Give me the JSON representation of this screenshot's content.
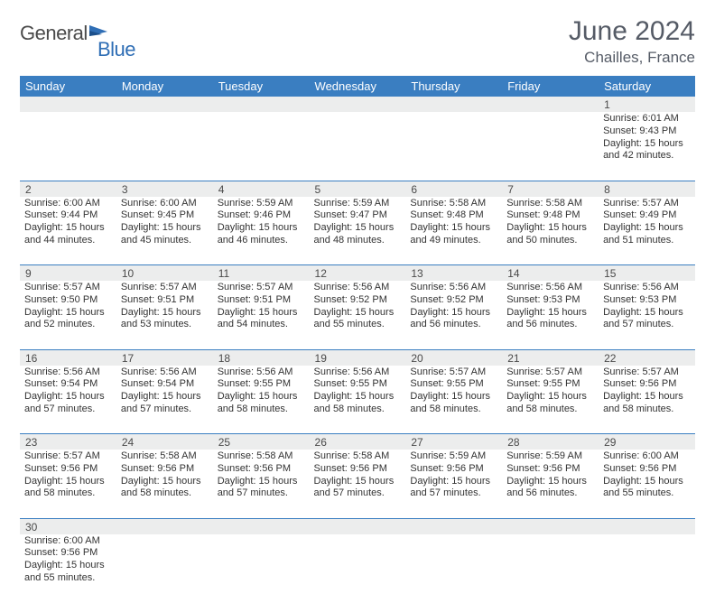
{
  "logo": {
    "part1": "General",
    "part2": "Blue"
  },
  "title": "June 2024",
  "location": "Chailles, France",
  "colors": {
    "header_bg": "#3a7ec1",
    "header_text": "#ffffff",
    "daynum_bg": "#eceded",
    "border": "#3a7ec1",
    "title_color": "#555b66",
    "logo_gray": "#4a4a4a",
    "logo_blue": "#2f6eb5",
    "text": "#333333"
  },
  "weekdays": [
    "Sunday",
    "Monday",
    "Tuesday",
    "Wednesday",
    "Thursday",
    "Friday",
    "Saturday"
  ],
  "weeks": [
    [
      null,
      null,
      null,
      null,
      null,
      null,
      {
        "n": "1",
        "sr": "6:01 AM",
        "ss": "9:43 PM",
        "dl": "15 hours and 42 minutes."
      }
    ],
    [
      {
        "n": "2",
        "sr": "6:00 AM",
        "ss": "9:44 PM",
        "dl": "15 hours and 44 minutes."
      },
      {
        "n": "3",
        "sr": "6:00 AM",
        "ss": "9:45 PM",
        "dl": "15 hours and 45 minutes."
      },
      {
        "n": "4",
        "sr": "5:59 AM",
        "ss": "9:46 PM",
        "dl": "15 hours and 46 minutes."
      },
      {
        "n": "5",
        "sr": "5:59 AM",
        "ss": "9:47 PM",
        "dl": "15 hours and 48 minutes."
      },
      {
        "n": "6",
        "sr": "5:58 AM",
        "ss": "9:48 PM",
        "dl": "15 hours and 49 minutes."
      },
      {
        "n": "7",
        "sr": "5:58 AM",
        "ss": "9:48 PM",
        "dl": "15 hours and 50 minutes."
      },
      {
        "n": "8",
        "sr": "5:57 AM",
        "ss": "9:49 PM",
        "dl": "15 hours and 51 minutes."
      }
    ],
    [
      {
        "n": "9",
        "sr": "5:57 AM",
        "ss": "9:50 PM",
        "dl": "15 hours and 52 minutes."
      },
      {
        "n": "10",
        "sr": "5:57 AM",
        "ss": "9:51 PM",
        "dl": "15 hours and 53 minutes."
      },
      {
        "n": "11",
        "sr": "5:57 AM",
        "ss": "9:51 PM",
        "dl": "15 hours and 54 minutes."
      },
      {
        "n": "12",
        "sr": "5:56 AM",
        "ss": "9:52 PM",
        "dl": "15 hours and 55 minutes."
      },
      {
        "n": "13",
        "sr": "5:56 AM",
        "ss": "9:52 PM",
        "dl": "15 hours and 56 minutes."
      },
      {
        "n": "14",
        "sr": "5:56 AM",
        "ss": "9:53 PM",
        "dl": "15 hours and 56 minutes."
      },
      {
        "n": "15",
        "sr": "5:56 AM",
        "ss": "9:53 PM",
        "dl": "15 hours and 57 minutes."
      }
    ],
    [
      {
        "n": "16",
        "sr": "5:56 AM",
        "ss": "9:54 PM",
        "dl": "15 hours and 57 minutes."
      },
      {
        "n": "17",
        "sr": "5:56 AM",
        "ss": "9:54 PM",
        "dl": "15 hours and 57 minutes."
      },
      {
        "n": "18",
        "sr": "5:56 AM",
        "ss": "9:55 PM",
        "dl": "15 hours and 58 minutes."
      },
      {
        "n": "19",
        "sr": "5:56 AM",
        "ss": "9:55 PM",
        "dl": "15 hours and 58 minutes."
      },
      {
        "n": "20",
        "sr": "5:57 AM",
        "ss": "9:55 PM",
        "dl": "15 hours and 58 minutes."
      },
      {
        "n": "21",
        "sr": "5:57 AM",
        "ss": "9:55 PM",
        "dl": "15 hours and 58 minutes."
      },
      {
        "n": "22",
        "sr": "5:57 AM",
        "ss": "9:56 PM",
        "dl": "15 hours and 58 minutes."
      }
    ],
    [
      {
        "n": "23",
        "sr": "5:57 AM",
        "ss": "9:56 PM",
        "dl": "15 hours and 58 minutes."
      },
      {
        "n": "24",
        "sr": "5:58 AM",
        "ss": "9:56 PM",
        "dl": "15 hours and 58 minutes."
      },
      {
        "n": "25",
        "sr": "5:58 AM",
        "ss": "9:56 PM",
        "dl": "15 hours and 57 minutes."
      },
      {
        "n": "26",
        "sr": "5:58 AM",
        "ss": "9:56 PM",
        "dl": "15 hours and 57 minutes."
      },
      {
        "n": "27",
        "sr": "5:59 AM",
        "ss": "9:56 PM",
        "dl": "15 hours and 57 minutes."
      },
      {
        "n": "28",
        "sr": "5:59 AM",
        "ss": "9:56 PM",
        "dl": "15 hours and 56 minutes."
      },
      {
        "n": "29",
        "sr": "6:00 AM",
        "ss": "9:56 PM",
        "dl": "15 hours and 55 minutes."
      }
    ],
    [
      {
        "n": "30",
        "sr": "6:00 AM",
        "ss": "9:56 PM",
        "dl": "15 hours and 55 minutes."
      },
      null,
      null,
      null,
      null,
      null,
      null
    ]
  ],
  "labels": {
    "sunrise": "Sunrise: ",
    "sunset": "Sunset: ",
    "daylight": "Daylight: "
  }
}
